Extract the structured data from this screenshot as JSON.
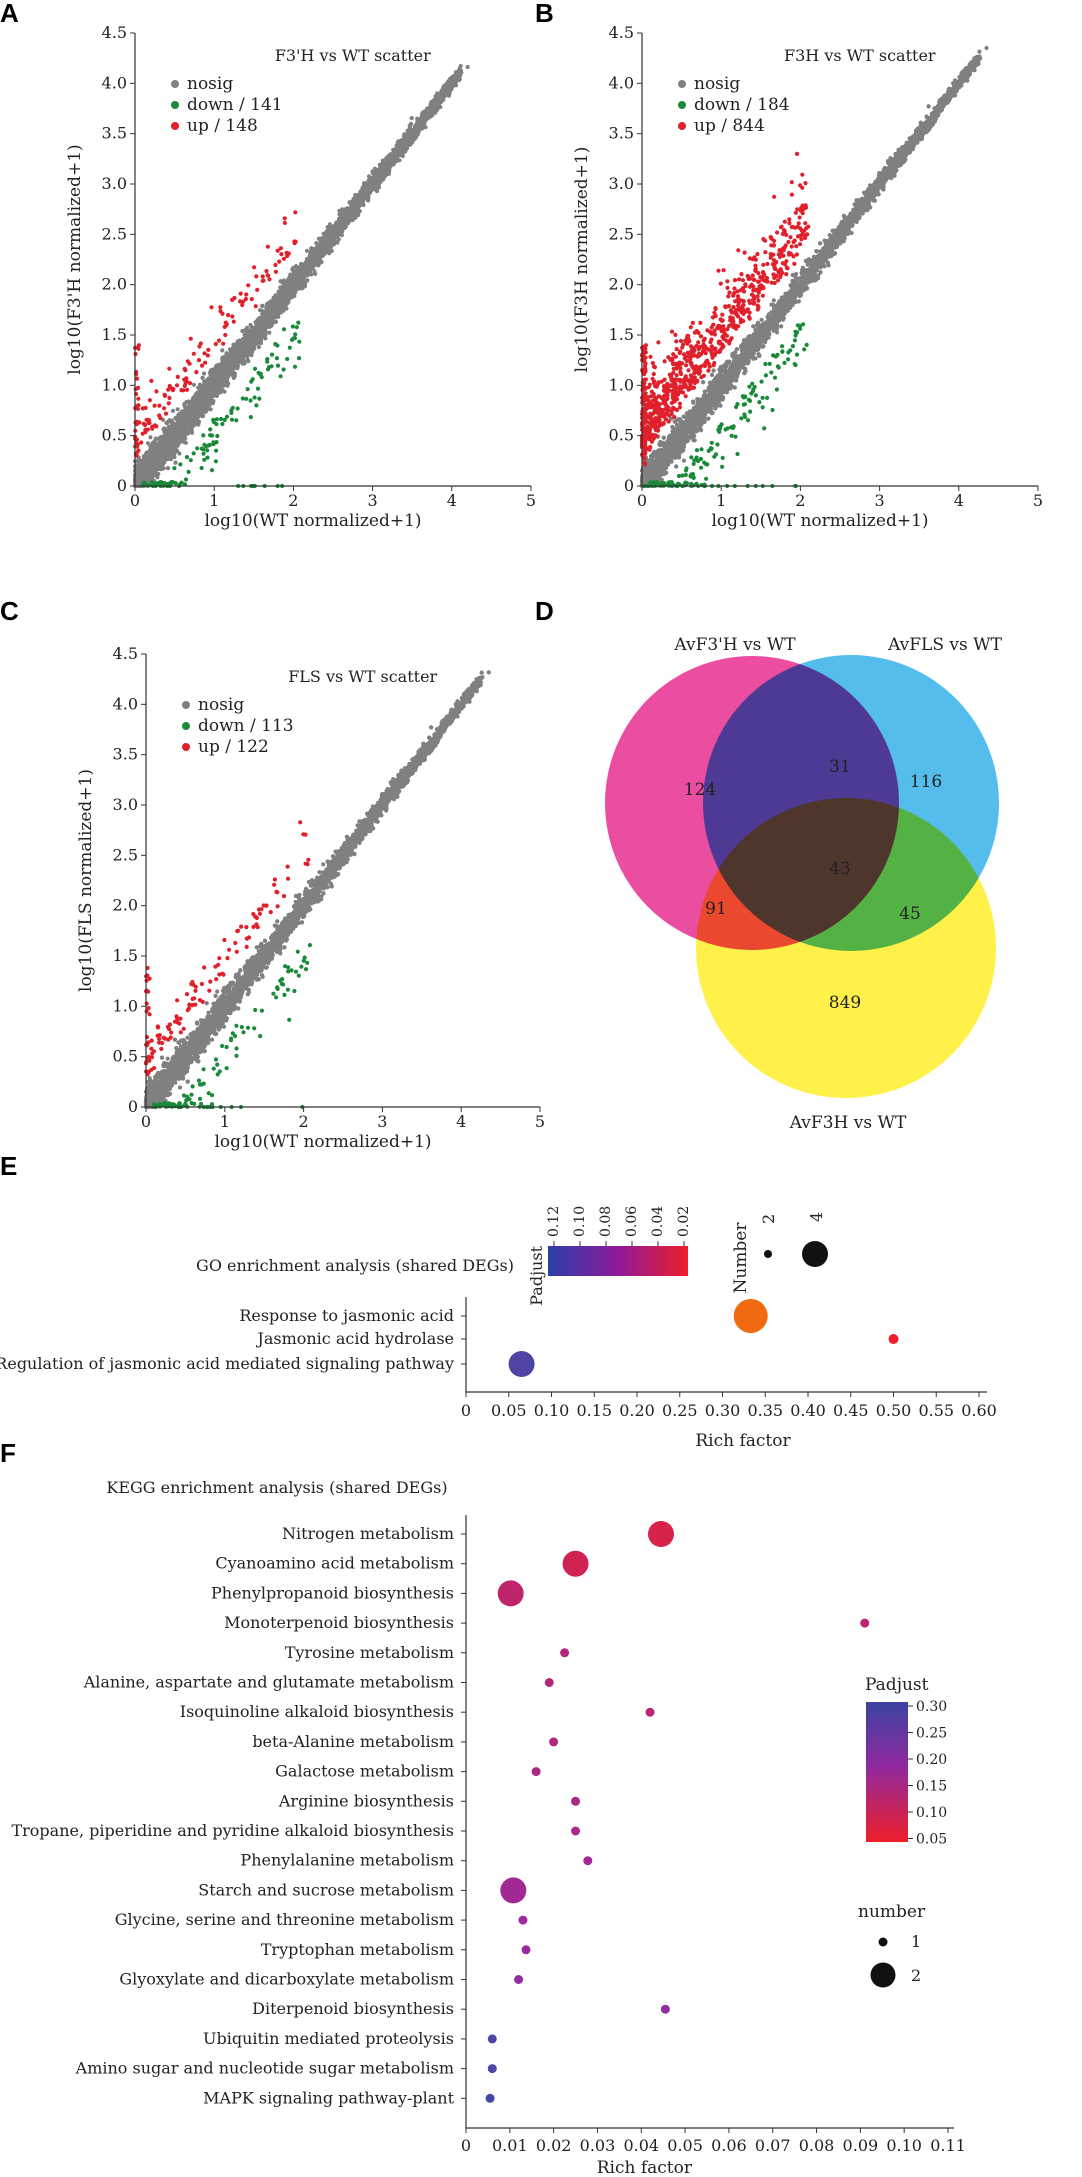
{
  "panel_labels": [
    "A",
    "B",
    "C",
    "D",
    "E",
    "F"
  ],
  "chart_data": [
    {
      "type": "scatter",
      "panel": "A",
      "title": "F3'H vs WT scatter",
      "xlabel": "log10(WT normalized+1)",
      "ylabel": "log10(F3'H normalized+1)",
      "xlim": [
        0,
        5
      ],
      "ylim": [
        0,
        4.5
      ],
      "xticks": [
        "0",
        "1",
        "2",
        "3",
        "4",
        "5"
      ],
      "yticks": [
        "0",
        "0.5",
        "1.0",
        "1.5",
        "2.0",
        "2.5",
        "3.0",
        "3.5",
        "4.0",
        "4.5"
      ],
      "legend": [
        {
          "label": "nosig",
          "color": "#808080"
        },
        {
          "label": "down / 141",
          "color": "#1a8a3a"
        },
        {
          "label": "up / 148",
          "color": "#e0202a"
        }
      ],
      "series": [
        {
          "name": "nosig",
          "count": 6000,
          "xmax": 4.2
        },
        {
          "name": "down",
          "count": 141
        },
        {
          "name": "up",
          "count": 148
        }
      ]
    },
    {
      "type": "scatter",
      "panel": "B",
      "title": "F3H vs WT scatter",
      "xlabel": "log10(WT normalized+1)",
      "ylabel": "log10(F3H normalized+1)",
      "xlim": [
        0,
        5
      ],
      "ylim": [
        0,
        4.5
      ],
      "xticks": [
        "0",
        "1",
        "2",
        "3",
        "4",
        "5"
      ],
      "yticks": [
        "0",
        "0.5",
        "1.0",
        "1.5",
        "2.0",
        "2.5",
        "3.0",
        "3.5",
        "4.0",
        "4.5"
      ],
      "legend": [
        {
          "label": "nosig",
          "color": "#808080"
        },
        {
          "label": "down / 184",
          "color": "#1a8a3a"
        },
        {
          "label": "up / 844",
          "color": "#e0202a"
        }
      ],
      "series": [
        {
          "name": "nosig",
          "count": 6000,
          "xmax": 4.35
        },
        {
          "name": "down",
          "count": 184
        },
        {
          "name": "up",
          "count": 844
        }
      ]
    },
    {
      "type": "scatter",
      "panel": "C",
      "title": "FLS vs WT scatter",
      "xlabel": "log10(WT normalized+1)",
      "ylabel": "log10(FLS normalized+1)",
      "xlim": [
        0,
        5
      ],
      "ylim": [
        0,
        4.5
      ],
      "xticks": [
        "0",
        "1",
        "2",
        "3",
        "4",
        "5"
      ],
      "yticks": [
        "0",
        "0.5",
        "1.0",
        "1.5",
        "2.0",
        "2.5",
        "3.0",
        "3.5",
        "4.0",
        "4.5"
      ],
      "legend": [
        {
          "label": "nosig",
          "color": "#808080"
        },
        {
          "label": "down / 113",
          "color": "#1a8a3a"
        },
        {
          "label": "up / 122",
          "color": "#e0202a"
        }
      ],
      "series": [
        {
          "name": "nosig",
          "count": 6000,
          "xmax": 4.35
        },
        {
          "name": "down",
          "count": 113
        },
        {
          "name": "up",
          "count": 122
        }
      ]
    },
    {
      "type": "venn",
      "panel": "D",
      "sets": [
        {
          "name": "AvF3'H vs WT",
          "color": "#e6268c"
        },
        {
          "name": "AvFLS vs WT",
          "color": "#2eaee8"
        },
        {
          "name": "AvF3H vs WT",
          "color": "#ffee22"
        }
      ],
      "regions": [
        {
          "sets": [
            "AvF3'H vs WT"
          ],
          "value": "124"
        },
        {
          "sets": [
            "AvFLS vs WT"
          ],
          "value": "116"
        },
        {
          "sets": [
            "AvF3H vs WT"
          ],
          "value": "849"
        },
        {
          "sets": [
            "AvF3'H vs WT",
            "AvFLS vs WT"
          ],
          "value": "31"
        },
        {
          "sets": [
            "AvF3'H vs WT",
            "AvF3H vs WT"
          ],
          "value": "91"
        },
        {
          "sets": [
            "AvFLS vs WT",
            "AvF3H vs WT"
          ],
          "value": "45"
        },
        {
          "sets": [
            "AvF3'H vs WT",
            "AvFLS vs WT",
            "AvF3H vs WT"
          ],
          "value": "43"
        }
      ]
    },
    {
      "type": "scatter",
      "panel": "E",
      "title": "GO enrichment analysis (shared DEGs)",
      "xlabel": "Rich factor",
      "xlim": [
        0,
        0.6
      ],
      "xticks": [
        "0",
        "0.05",
        "0.10",
        "0.15",
        "0.20",
        "0.25",
        "0.30",
        "0.35",
        "0.40",
        "0.45",
        "0.50",
        "0.55",
        "0.60"
      ],
      "categories": [
        "Response to jasmonic acid",
        "Jasmonic acid hydrolase",
        "Regulation of jasmonic acid mediated signaling pathway"
      ],
      "points": [
        {
          "term": "Response to jasmonic acid",
          "x": 0.333,
          "padjust": 0.03,
          "number": 4
        },
        {
          "term": "Jasmonic acid hydrolase",
          "x": 0.5,
          "padjust": 0.02,
          "number": 1
        },
        {
          "term": "Regulation of jasmonic acid mediated signaling pathway",
          "x": 0.065,
          "padjust": 0.12,
          "number": 3
        }
      ],
      "color_legend": {
        "title": "Padjust",
        "ticks": [
          "0.12",
          "0.10",
          "0.08",
          "0.06",
          "0.04",
          "0.02"
        ],
        "range": [
          0.02,
          0.13
        ]
      },
      "size_legend": {
        "title": "Number",
        "items": [
          "2",
          "4"
        ]
      }
    },
    {
      "type": "scatter",
      "panel": "F",
      "title": "KEGG enrichment analysis (shared DEGs)",
      "xlabel": "Rich factor",
      "xlim": [
        0,
        0.11
      ],
      "xticks": [
        "0",
        "0.01",
        "0.02",
        "0.03",
        "0.04",
        "0.05",
        "0.06",
        "0.07",
        "0.08",
        "0.09",
        "0.10",
        "0.11"
      ],
      "points": [
        {
          "term": "Nitrogen metabolism",
          "x": 0.0445,
          "padjust": 0.09,
          "number": 2
        },
        {
          "term": "Cyanoamino acid metabolism",
          "x": 0.025,
          "padjust": 0.1,
          "number": 2
        },
        {
          "term": "Phenylpropanoid biosynthesis",
          "x": 0.0102,
          "padjust": 0.13,
          "number": 2
        },
        {
          "term": "Monoterpenoid biosynthesis",
          "x": 0.091,
          "padjust": 0.14,
          "number": 1
        },
        {
          "term": "Tyrosine metabolism",
          "x": 0.0225,
          "padjust": 0.15,
          "number": 1
        },
        {
          "term": "Alanine, aspartate and glutamate metabolism",
          "x": 0.019,
          "padjust": 0.15,
          "number": 1
        },
        {
          "term": "Isoquinoline alkaloid biosynthesis",
          "x": 0.042,
          "padjust": 0.14,
          "number": 1
        },
        {
          "term": "beta-Alanine metabolism",
          "x": 0.02,
          "padjust": 0.15,
          "number": 1
        },
        {
          "term": "Galactose metabolism",
          "x": 0.016,
          "padjust": 0.16,
          "number": 1
        },
        {
          "term": "Arginine biosynthesis",
          "x": 0.025,
          "padjust": 0.17,
          "number": 1
        },
        {
          "term": "Tropane, piperidine and pyridine alkaloid biosynthesis",
          "x": 0.025,
          "padjust": 0.17,
          "number": 1
        },
        {
          "term": "Phenylalanine metabolism",
          "x": 0.0278,
          "padjust": 0.18,
          "number": 1
        },
        {
          "term": "Starch and sucrose metabolism",
          "x": 0.0108,
          "padjust": 0.18,
          "number": 2
        },
        {
          "term": "Glycine, serine and threonine metabolism",
          "x": 0.013,
          "padjust": 0.19,
          "number": 1
        },
        {
          "term": "Tryptophan metabolism",
          "x": 0.0137,
          "padjust": 0.19,
          "number": 1
        },
        {
          "term": "Glyoxylate and dicarboxylate metabolism",
          "x": 0.012,
          "padjust": 0.2,
          "number": 1
        },
        {
          "term": "Diterpenoid biosynthesis",
          "x": 0.0455,
          "padjust": 0.21,
          "number": 1
        },
        {
          "term": "Ubiquitin mediated proteolysis",
          "x": 0.006,
          "padjust": 0.29,
          "number": 1
        },
        {
          "term": "Amino sugar and nucleotide sugar metabolism",
          "x": 0.006,
          "padjust": 0.29,
          "number": 1
        },
        {
          "term": "MAPK signaling pathway-plant",
          "x": 0.0055,
          "padjust": 0.3,
          "number": 1
        }
      ],
      "color_legend": {
        "title": "Padjust",
        "ticks": [
          "0.30",
          "0.25",
          "0.20",
          "0.15",
          "0.10",
          "0.05"
        ],
        "range": [
          0.05,
          0.31
        ]
      },
      "size_legend": {
        "title": "number",
        "items": [
          "1",
          "2"
        ]
      }
    }
  ]
}
